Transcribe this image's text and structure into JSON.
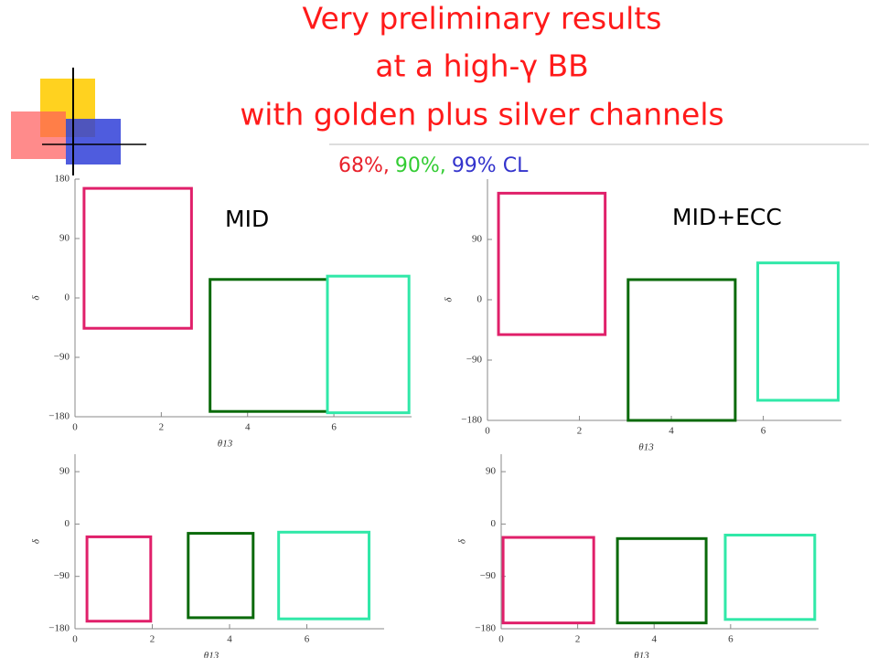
{
  "title": [
    "Very preliminary results",
    "at a high-γ BB",
    "with golden plus silver channels"
  ],
  "cl_legend": [
    {
      "text": "68%,",
      "color": "#e8202a"
    },
    {
      "text": "90%,",
      "color": "#33cc33"
    },
    {
      "text": "99% CL",
      "color": "#3333cc"
    }
  ],
  "panel_labels": [
    "MID",
    "MID+ECC"
  ],
  "chart_data": [
    {
      "type": "rect",
      "xlabel": "θ13",
      "ylabel": "δ",
      "xlim": [
        0,
        7.8
      ],
      "ylim": [
        -180,
        180
      ],
      "xticks": [
        0,
        2,
        4,
        6
      ],
      "yticks": [
        180,
        90,
        0,
        {
          "value": -90,
          "label": "−90"
        },
        {
          "value": -180,
          "label": "−180"
        }
      ],
      "rects": [
        {
          "color": "#e0206a",
          "x": [
            0.21,
            2.7
          ],
          "y": [
            -46,
            166
          ]
        },
        {
          "color": "#0a6a0a",
          "x": [
            3.13,
            5.85
          ],
          "y": [
            -172,
            28
          ]
        },
        {
          "color": "#30e8a8",
          "x": [
            5.85,
            7.74
          ],
          "y": [
            -174,
            33
          ]
        }
      ]
    },
    {
      "type": "rect",
      "xlabel": "θ13",
      "ylabel": "δ",
      "xlim": [
        0,
        7.7
      ],
      "ylim": [
        -180,
        180
      ],
      "xticks": [
        0,
        2,
        4,
        6
      ],
      "yticks": [
        90,
        0,
        {
          "value": -90,
          "label": "−90"
        },
        {
          "value": -180,
          "label": "−180"
        }
      ],
      "rects": [
        {
          "color": "#e0206a",
          "x": [
            0.24,
            2.56
          ],
          "y": [
            -52,
            159
          ]
        },
        {
          "color": "#0a6a0a",
          "x": [
            3.06,
            5.39
          ],
          "y": [
            -180,
            30
          ]
        },
        {
          "color": "#30e8a8",
          "x": [
            5.88,
            7.63
          ],
          "y": [
            -150,
            55
          ]
        }
      ]
    },
    {
      "type": "rect",
      "xlabel": "θ13",
      "ylabel": "δ",
      "xlim": [
        0,
        8
      ],
      "ylim": [
        -180,
        120
      ],
      "xticks": [
        0,
        2,
        4,
        6
      ],
      "yticks": [
        90,
        0,
        {
          "value": -90,
          "label": "−90"
        },
        {
          "value": -180,
          "label": "−180"
        }
      ],
      "rects": [
        {
          "color": "#e0206a",
          "x": [
            0.31,
            1.96
          ],
          "y": [
            -167,
            -22
          ]
        },
        {
          "color": "#0a6a0a",
          "x": [
            2.93,
            4.61
          ],
          "y": [
            -161,
            -16
          ]
        },
        {
          "color": "#30e8a8",
          "x": [
            5.27,
            7.61
          ],
          "y": [
            -163,
            -14
          ]
        }
      ]
    },
    {
      "type": "rect",
      "xlabel": "θ13",
      "ylabel": "δ",
      "xlim": [
        0,
        8.3
      ],
      "ylim": [
        -180,
        120
      ],
      "xticks": [
        0,
        2,
        4,
        6
      ],
      "yticks": [
        90,
        0,
        {
          "value": -90,
          "label": "−90"
        },
        {
          "value": -180,
          "label": "−180"
        }
      ],
      "rects": [
        {
          "color": "#e0206a",
          "x": [
            0.05,
            2.42
          ],
          "y": [
            -170,
            -23
          ]
        },
        {
          "color": "#0a6a0a",
          "x": [
            3.04,
            5.36
          ],
          "y": [
            -170,
            -25
          ]
        },
        {
          "color": "#30e8a8",
          "x": [
            5.86,
            8.2
          ],
          "y": [
            -164,
            -19
          ]
        }
      ]
    }
  ]
}
